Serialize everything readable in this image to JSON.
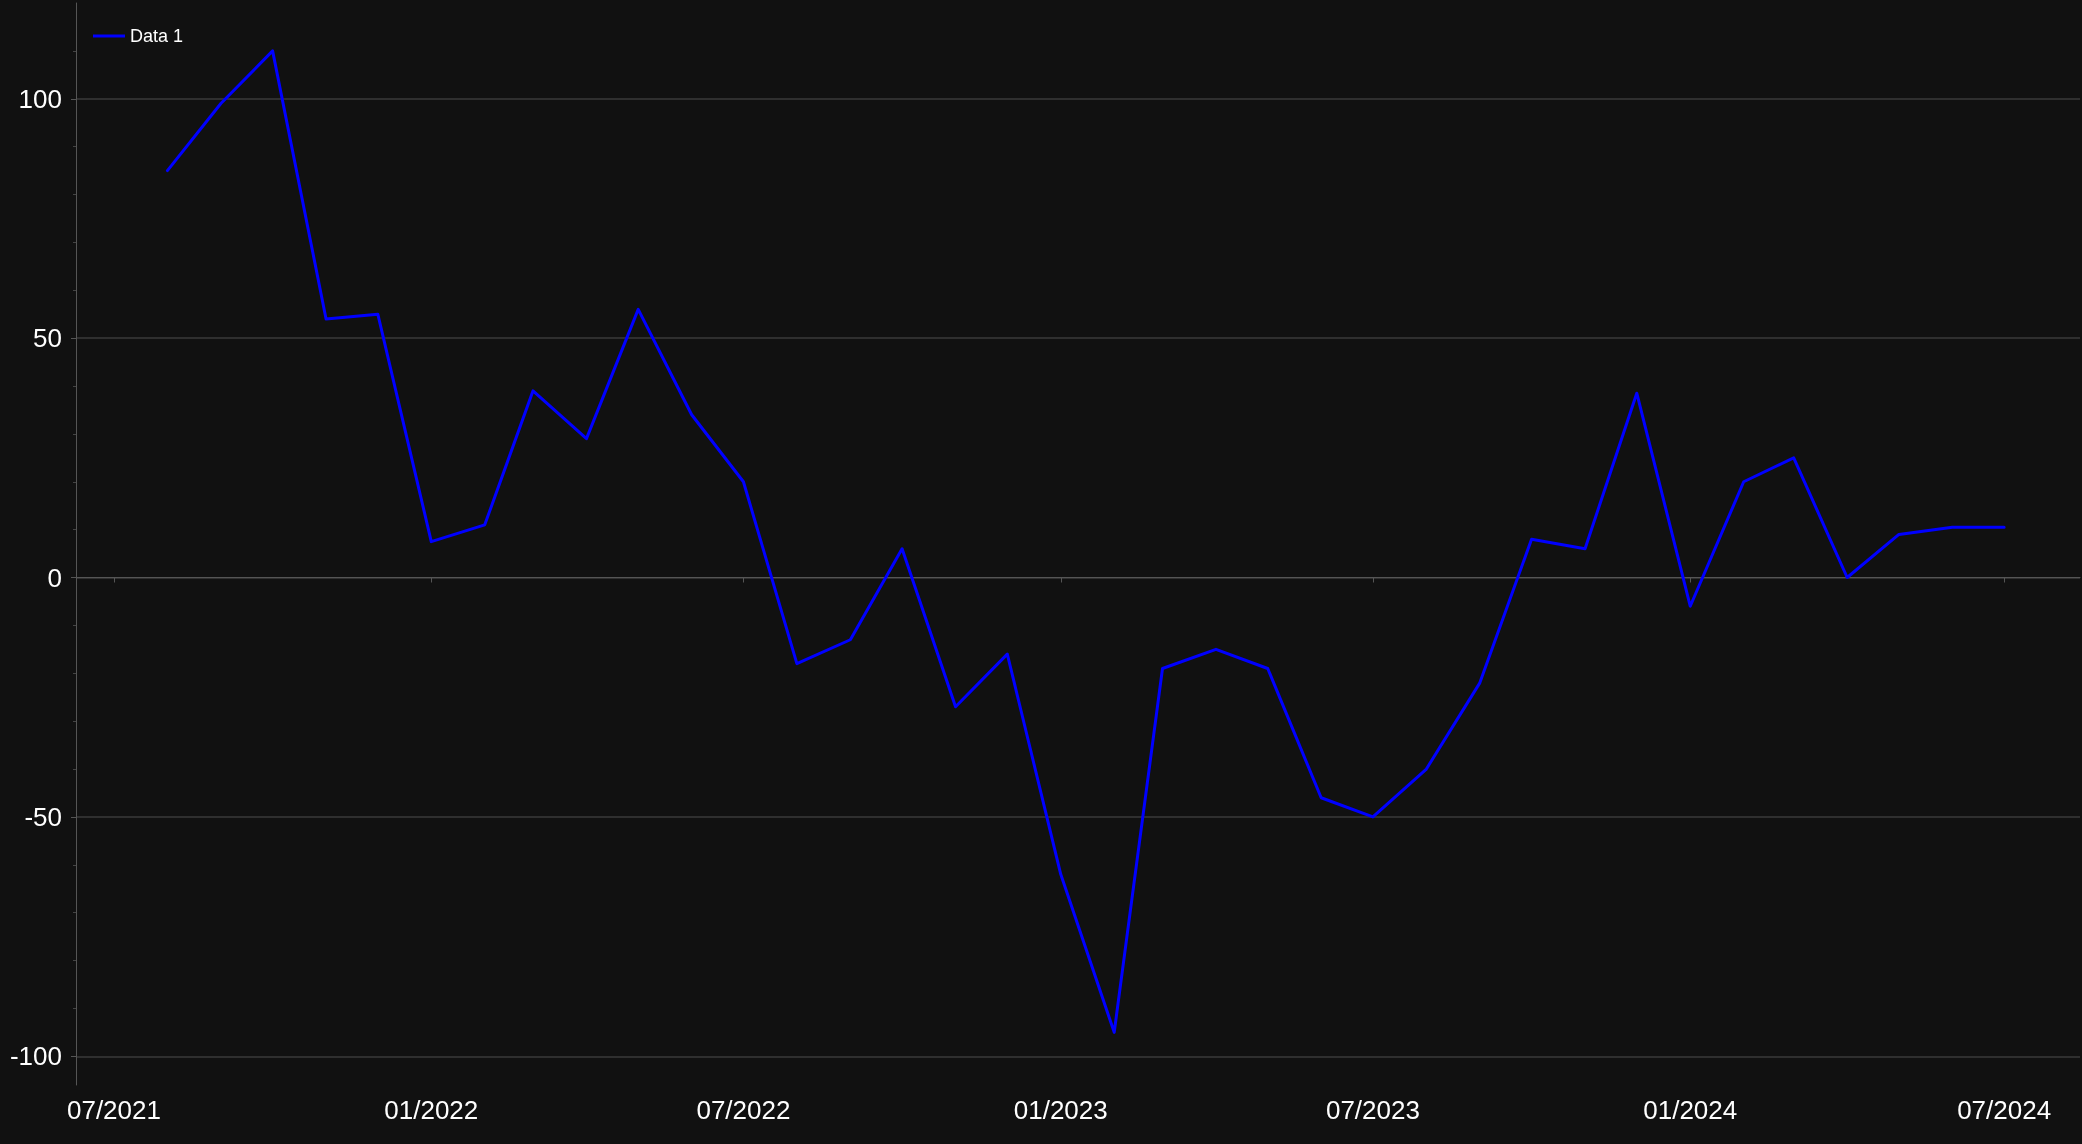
{
  "chart_data": {
    "type": "line",
    "legend": "top left",
    "grid": "y",
    "marker": "none",
    "line_style": "solid",
    "x": [
      "2021-08",
      "2021-09",
      "2021-10",
      "2021-11",
      "2021-12",
      "2022-01",
      "2022-02",
      "2022-03",
      "2022-04",
      "2022-05",
      "2022-06",
      "2022-07",
      "2022-08",
      "2022-09",
      "2022-10",
      "2022-11",
      "2022-12",
      "2023-01",
      "2023-02",
      "2023-03",
      "2023-04",
      "2023-05",
      "2023-06",
      "2023-07",
      "2023-08",
      "2023-09",
      "2023-10",
      "2023-11",
      "2023-12",
      "2024-01",
      "2024-02",
      "2024-03",
      "2024-04",
      "2024-05",
      "2024-06",
      "2024-07"
    ],
    "series": [
      {
        "name": "Data 1",
        "color": "#0000ff",
        "values": [
          85,
          99,
          110,
          54,
          55,
          7.5,
          11,
          39,
          29,
          56,
          34,
          20,
          -18,
          -13,
          6,
          -27,
          -16,
          -62,
          -95,
          -19,
          -15,
          -19,
          -46,
          -50,
          -40,
          -22,
          8,
          6,
          38.5,
          -6,
          20,
          25,
          0,
          9,
          10.5,
          10.5
        ]
      }
    ],
    "xlim": [
      "2021-06-09",
      "2024-08-14"
    ],
    "xticks": [
      {
        "value": "2021-07",
        "label": "07/2021"
      },
      {
        "value": "2022-01",
        "label": "01/2022"
      },
      {
        "value": "2022-07",
        "label": "07/2022"
      },
      {
        "value": "2023-01",
        "label": "01/2023"
      },
      {
        "value": "2023-07",
        "label": "07/2023"
      },
      {
        "value": "2024-01",
        "label": "01/2024"
      },
      {
        "value": "2024-07",
        "label": "07/2024"
      }
    ],
    "ylim": [
      -106,
      120
    ],
    "yticks": [
      -100,
      -50,
      0,
      50,
      100
    ]
  }
}
